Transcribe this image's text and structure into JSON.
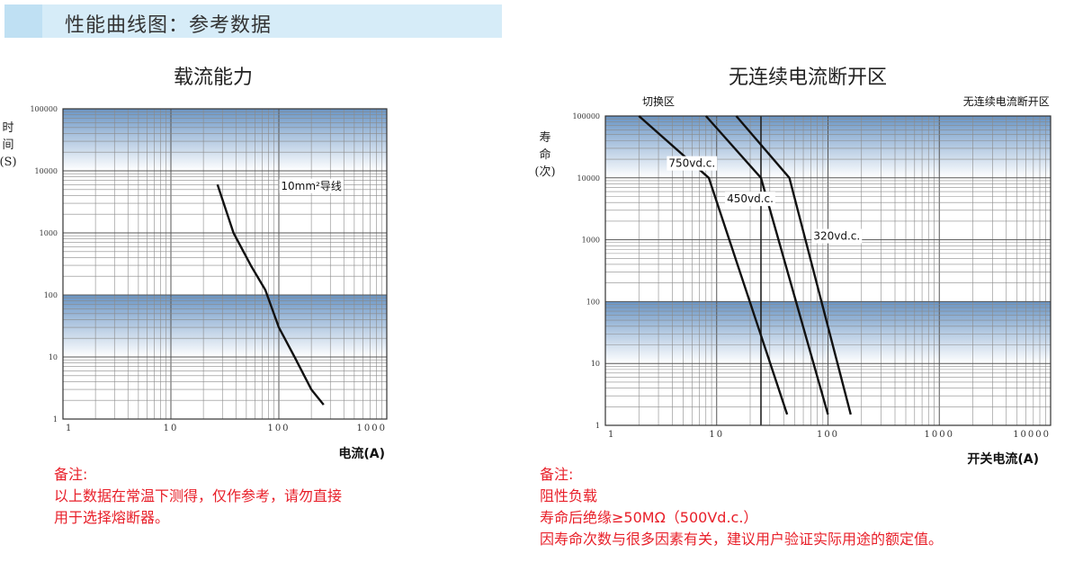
{
  "header": {
    "title": "性能曲线图：参考数据"
  },
  "chart_data": [
    {
      "type": "line",
      "title": "载流能力",
      "ylabel": "时间(S)",
      "ylabel_chars": [
        "时",
        "间",
        "(S)"
      ],
      "xlabel": "电流(A)",
      "x_scale": "log",
      "y_scale": "log",
      "xlim": [
        1,
        1000
      ],
      "ylim": [
        1,
        100000
      ],
      "x_ticks": [
        {
          "v": 1,
          "label": "1"
        },
        {
          "v": 10,
          "label": "10"
        },
        {
          "v": 100,
          "label": "100"
        },
        {
          "v": 1000,
          "label": "1000"
        }
      ],
      "y_ticks": [
        {
          "v": 1,
          "label": "1"
        },
        {
          "v": 10,
          "label": "10"
        },
        {
          "v": 100,
          "label": "100"
        },
        {
          "v": 1000,
          "label": "1000"
        },
        {
          "v": 10000,
          "label": "10000"
        },
        {
          "v": 100000,
          "label": "100000"
        }
      ],
      "grid": true,
      "bands": [
        {
          "from": 10000,
          "to": 100000,
          "color": "#6a95c5"
        },
        {
          "from": 10,
          "to": 100,
          "color": "#6a95c5"
        }
      ],
      "series": [
        {
          "name": "10mm²导线",
          "x": [
            27,
            38,
            55,
            75,
            100,
            140,
            200,
            260
          ],
          "y": [
            6000,
            1000,
            300,
            120,
            30,
            10,
            3,
            1.7
          ]
        }
      ],
      "annotations": [
        {
          "text": "10mm²导线",
          "x": 200,
          "y": 5000
        }
      ],
      "notes": [
        "备注:",
        "以上数据在常温下测得，仅作参考，请勿直接",
        "用于选择熔断器。"
      ]
    },
    {
      "type": "line",
      "title": "无连续电流断开区",
      "ylabel": "寿命(次)",
      "ylabel_chars": [
        "寿",
        "命",
        "(次)"
      ],
      "xlabel": "开关电流(A)",
      "x_scale": "log",
      "y_scale": "log",
      "xlim": [
        1,
        10000
      ],
      "ylim": [
        1,
        100000
      ],
      "x_ticks": [
        {
          "v": 1,
          "label": "1"
        },
        {
          "v": 10,
          "label": "10"
        },
        {
          "v": 100,
          "label": "100"
        },
        {
          "v": 1000,
          "label": "1000"
        },
        {
          "v": 10000,
          "label": "10000"
        }
      ],
      "y_ticks": [
        {
          "v": 1,
          "label": "1"
        },
        {
          "v": 10,
          "label": "10"
        },
        {
          "v": 100,
          "label": "100"
        },
        {
          "v": 1000,
          "label": "1000"
        },
        {
          "v": 10000,
          "label": "10000"
        },
        {
          "v": 100000,
          "label": "100000"
        }
      ],
      "grid": true,
      "bands": [
        {
          "from": 10000,
          "to": 100000,
          "color": "#6a95c5"
        },
        {
          "from": 10,
          "to": 100,
          "color": "#6a95c5"
        }
      ],
      "vlines": [
        25
      ],
      "series": [
        {
          "name": "750vd.c.",
          "x": [
            2,
            8.5,
            43
          ],
          "y": [
            100000,
            10000,
            1.5
          ]
        },
        {
          "name": "450vd.c.",
          "x": [
            8,
            25,
            100
          ],
          "y": [
            100000,
            10000,
            1.5
          ]
        },
        {
          "name": "320vd.c.",
          "x": [
            15,
            45,
            160
          ],
          "y": [
            100000,
            10000,
            1.5
          ]
        }
      ],
      "annotations": [
        {
          "text": "切换区",
          "x": 3,
          "y": 150000
        },
        {
          "text": "无连续电流断开区",
          "x": 4000,
          "y": 150000
        },
        {
          "text": "750vd.c.",
          "x": 6,
          "y": 15000
        },
        {
          "text": "450vd.c.",
          "x": 20,
          "y": 4000
        },
        {
          "text": "320vd.c.",
          "x": 120,
          "y": 1000
        }
      ],
      "notes": [
        "备注:",
        "阻性负载",
        "寿命后绝缘≥50MΩ（500Vd.c.）",
        "因寿命次数与很多因素有关，建议用户验证实际用途的额定值。"
      ]
    }
  ]
}
